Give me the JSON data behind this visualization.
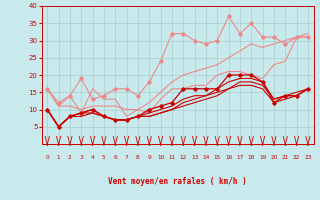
{
  "background_color": "#c8eaec",
  "grid_color": "#aacccc",
  "xlabel": "Vent moyen/en rafales ( km/h )",
  "xlabel_color": "#cc0000",
  "tick_color": "#cc0000",
  "xlim": [
    -0.5,
    23.5
  ],
  "ylim": [
    0,
    40
  ],
  "yticks": [
    5,
    10,
    15,
    20,
    25,
    30,
    35,
    40
  ],
  "xticks": [
    0,
    1,
    2,
    3,
    4,
    5,
    6,
    7,
    8,
    9,
    10,
    11,
    12,
    13,
    14,
    15,
    16,
    17,
    18,
    19,
    20,
    21,
    22,
    23
  ],
  "series": [
    {
      "x": [
        0,
        1,
        2,
        3,
        4,
        5,
        6,
        7,
        8,
        9,
        10,
        11,
        12,
        13,
        14,
        15,
        16,
        17,
        18,
        19,
        20,
        21,
        22,
        23
      ],
      "y": [
        16,
        12,
        14,
        19,
        13,
        14,
        16,
        16,
        14,
        18,
        24,
        32,
        32,
        30,
        29,
        30,
        37,
        32,
        35,
        31,
        31,
        29,
        31,
        31
      ],
      "color": "#ee8888",
      "lw": 0.8,
      "marker": "D",
      "ms": 1.8,
      "zorder": 3
    },
    {
      "x": [
        0,
        1,
        2,
        3,
        4,
        5,
        6,
        7,
        8,
        9,
        10,
        11,
        12,
        13,
        14,
        15,
        16,
        17,
        18,
        19,
        20,
        21,
        22,
        23
      ],
      "y": [
        16,
        11,
        14,
        9,
        16,
        13,
        13,
        8,
        10,
        9,
        13,
        16,
        16,
        17,
        17,
        20,
        21,
        21,
        20,
        19,
        23,
        24,
        31,
        31
      ],
      "color": "#ee8888",
      "lw": 0.8,
      "marker": null,
      "ms": 0,
      "zorder": 2
    },
    {
      "x": [
        0,
        1,
        2,
        3,
        4,
        5,
        6,
        7,
        8,
        9,
        10,
        11,
        12,
        13,
        14,
        15,
        16,
        17,
        18,
        19,
        20,
        21,
        22,
        23
      ],
      "y": [
        16,
        11,
        11,
        10,
        11,
        11,
        11,
        10,
        10,
        12,
        15,
        18,
        20,
        21,
        22,
        23,
        25,
        27,
        29,
        28,
        29,
        30,
        31,
        32
      ],
      "color": "#ee8888",
      "lw": 0.8,
      "marker": null,
      "ms": 0,
      "zorder": 2
    },
    {
      "x": [
        0,
        1,
        2,
        3,
        4,
        5,
        6,
        7,
        8,
        9,
        10,
        11,
        12,
        13,
        14,
        15,
        16,
        17,
        18,
        19,
        20,
        21,
        22,
        23
      ],
      "y": [
        10,
        5,
        8,
        9,
        10,
        8,
        7,
        7,
        8,
        10,
        11,
        12,
        16,
        16,
        16,
        16,
        20,
        20,
        20,
        18,
        12,
        14,
        14,
        16
      ],
      "color": "#cc0000",
      "lw": 0.9,
      "marker": "D",
      "ms": 1.8,
      "zorder": 4
    },
    {
      "x": [
        0,
        1,
        2,
        3,
        4,
        5,
        6,
        7,
        8,
        9,
        10,
        11,
        12,
        13,
        14,
        15,
        16,
        17,
        18,
        19,
        20,
        21,
        22,
        23
      ],
      "y": [
        10,
        5,
        8,
        9,
        10,
        8,
        7,
        7,
        8,
        9,
        10,
        11,
        13,
        14,
        14,
        16,
        18,
        19,
        19,
        18,
        13,
        14,
        15,
        16
      ],
      "color": "#cc0000",
      "lw": 0.8,
      "marker": null,
      "ms": 0,
      "zorder": 3
    },
    {
      "x": [
        0,
        1,
        2,
        3,
        4,
        5,
        6,
        7,
        8,
        9,
        10,
        11,
        12,
        13,
        14,
        15,
        16,
        17,
        18,
        19,
        20,
        21,
        22,
        23
      ],
      "y": [
        10,
        5,
        8,
        9,
        9,
        8,
        7,
        7,
        8,
        8,
        9,
        10,
        12,
        13,
        14,
        15,
        16,
        18,
        18,
        17,
        13,
        14,
        14,
        16
      ],
      "color": "#cc0000",
      "lw": 0.8,
      "marker": null,
      "ms": 0,
      "zorder": 3
    },
    {
      "x": [
        0,
        1,
        2,
        3,
        4,
        5,
        6,
        7,
        8,
        9,
        10,
        11,
        12,
        13,
        14,
        15,
        16,
        17,
        18,
        19,
        20,
        21,
        22,
        23
      ],
      "y": [
        10,
        5,
        8,
        8,
        9,
        8,
        7,
        7,
        8,
        8,
        9,
        10,
        11,
        12,
        13,
        14,
        16,
        17,
        17,
        16,
        12,
        13,
        14,
        16
      ],
      "color": "#cc0000",
      "lw": 0.8,
      "marker": null,
      "ms": 0,
      "zorder": 3
    }
  ],
  "arrow_color": "#cc0000"
}
